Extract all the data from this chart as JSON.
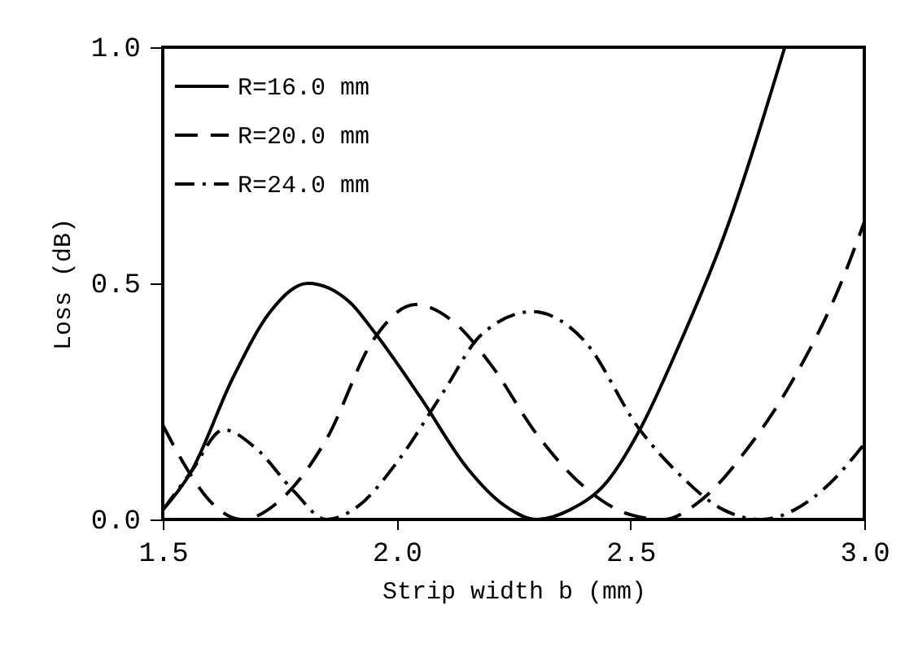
{
  "chart_data": {
    "type": "line",
    "xlabel": "Strip width b (mm)",
    "ylabel": "Loss (dB)",
    "xlim": [
      1.5,
      3.0
    ],
    "ylim": [
      0,
      1.0
    ],
    "xticks": [
      1.5,
      {
        "value": 2,
        "label": "2.0"
      },
      2.5,
      {
        "value": 3,
        "label": "3.0"
      }
    ],
    "yticks": [
      {
        "value": 0,
        "label": "0.0"
      },
      0.5,
      {
        "value": 1,
        "label": "1.0"
      }
    ],
    "grid": false,
    "legend": "top left",
    "marker": "none",
    "series": [
      {
        "name": "R=16.0 mm",
        "color": "#000000",
        "line_style": "solid",
        "x": [
          1.5,
          1.56,
          1.65,
          1.73,
          1.81,
          1.9,
          1.95,
          2.05,
          2.15,
          2.23,
          2.3,
          2.37,
          2.45,
          2.52,
          2.6,
          2.7,
          2.83
        ],
        "values": [
          0.02,
          0.1,
          0.3,
          0.44,
          0.5,
          0.46,
          0.4,
          0.26,
          0.11,
          0.03,
          0.0,
          0.02,
          0.08,
          0.19,
          0.36,
          0.6,
          1.0
        ]
      },
      {
        "name": "R=20.0 mm",
        "color": "#000000",
        "line_style": "dashed",
        "x": [
          1.5,
          1.55,
          1.6,
          1.67,
          1.75,
          1.85,
          1.95,
          2.04,
          2.12,
          2.2,
          2.3,
          2.4,
          2.5,
          2.57,
          2.65,
          2.75,
          2.85,
          2.95,
          3.0
        ],
        "values": [
          0.2,
          0.11,
          0.04,
          0.0,
          0.04,
          0.17,
          0.38,
          0.455,
          0.42,
          0.33,
          0.18,
          0.07,
          0.01,
          0.0,
          0.04,
          0.15,
          0.3,
          0.5,
          0.63
        ]
      },
      {
        "name": "R=24.0 mm",
        "color": "#000000",
        "line_style": "dashdot",
        "x": [
          1.5,
          1.56,
          1.63,
          1.7,
          1.78,
          1.85,
          1.92,
          2.0,
          2.1,
          2.18,
          2.29,
          2.4,
          2.52,
          2.6,
          2.7,
          2.78,
          2.85,
          2.93,
          3.0
        ],
        "values": [
          0.02,
          0.1,
          0.19,
          0.15,
          0.06,
          0.0,
          0.03,
          0.12,
          0.27,
          0.39,
          0.44,
          0.38,
          0.19,
          0.1,
          0.02,
          0.0,
          0.02,
          0.08,
          0.16
        ]
      }
    ]
  }
}
